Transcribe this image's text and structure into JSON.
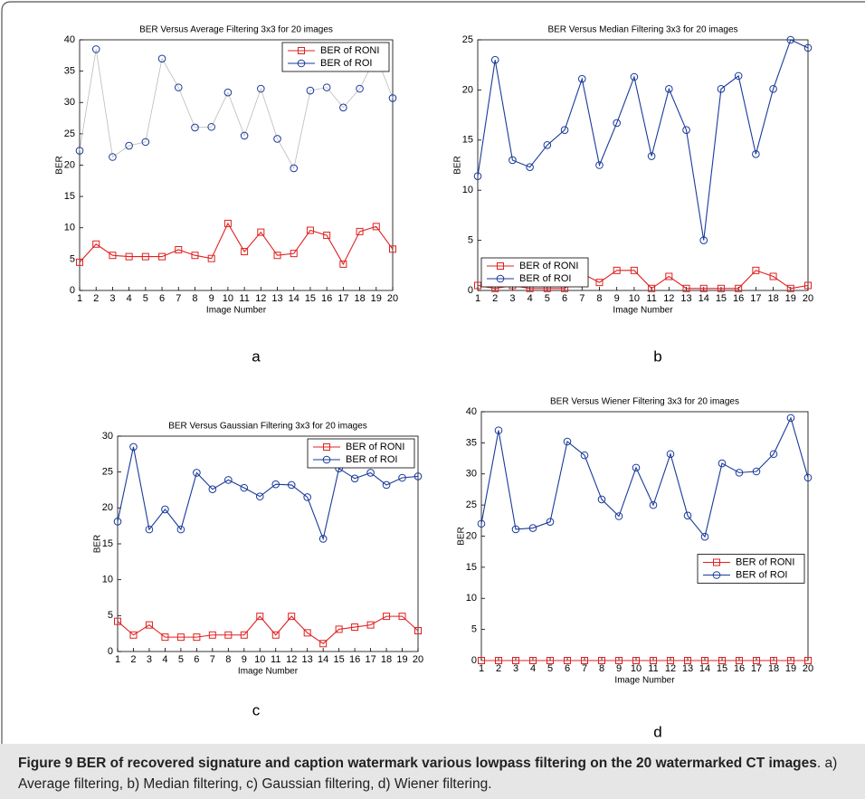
{
  "chart_data": [
    {
      "type": "line",
      "label": "a",
      "title": "BER Versus Average Filtering 3x3 for 20 images",
      "xlabel": "Image Number",
      "ylabel": "BER",
      "x": [
        1,
        2,
        3,
        4,
        5,
        6,
        7,
        8,
        9,
        10,
        11,
        12,
        13,
        14,
        15,
        16,
        17,
        18,
        19,
        20
      ],
      "xlim": [
        1,
        20
      ],
      "xticks": [
        1,
        2,
        3,
        4,
        5,
        6,
        7,
        8,
        9,
        10,
        11,
        12,
        13,
        14,
        15,
        16,
        17,
        18,
        19,
        20
      ],
      "ylim": [
        0,
        40
      ],
      "yticks": [
        0,
        5,
        10,
        15,
        20,
        25,
        30,
        35,
        40
      ],
      "legend": "upper right",
      "series": [
        {
          "name": "BER of RONI",
          "color": "#e02020",
          "marker": "square",
          "values": [
            4.5,
            7.4,
            5.6,
            5.4,
            5.4,
            5.4,
            6.5,
            5.6,
            5.1,
            10.7,
            6.2,
            9.3,
            5.6,
            5.9,
            9.6,
            8.8,
            4.2,
            9.4,
            10.2,
            6.6
          ]
        },
        {
          "name": "BER of ROI",
          "color": "#1a3a9a",
          "line_color": "#bbbbbb",
          "marker": "circle",
          "values": [
            22.3,
            38.5,
            21.3,
            23.1,
            23.7,
            37,
            32.4,
            26,
            26.1,
            31.6,
            24.7,
            32.2,
            24.2,
            19.5,
            31.9,
            32.4,
            29.2,
            32.2,
            37.4,
            30.7
          ]
        }
      ]
    },
    {
      "type": "line",
      "label": "b",
      "title": "BER Versus Median Filtering 3x3 for 20 images",
      "xlabel": "Image Number",
      "ylabel": "BER",
      "x": [
        1,
        2,
        3,
        4,
        5,
        6,
        7,
        8,
        9,
        10,
        11,
        12,
        13,
        14,
        15,
        16,
        17,
        18,
        19,
        20
      ],
      "xlim": [
        1,
        20
      ],
      "xticks": [
        1,
        2,
        3,
        4,
        5,
        6,
        7,
        8,
        9,
        10,
        11,
        12,
        13,
        14,
        15,
        16,
        17,
        18,
        19,
        20
      ],
      "ylim": [
        0,
        25
      ],
      "yticks": [
        0,
        5,
        10,
        15,
        20,
        25
      ],
      "legend": "lower left",
      "series": [
        {
          "name": "BER of RONI",
          "color": "#e02020",
          "marker": "square",
          "values": [
            0.5,
            0.2,
            0.5,
            0.2,
            0.2,
            0.2,
            1.7,
            0.8,
            2,
            2,
            0.2,
            1.4,
            0.2,
            0.2,
            0.2,
            0.2,
            2,
            1.4,
            0.2,
            0.5
          ]
        },
        {
          "name": "BER of ROI",
          "color": "#1a3a9a",
          "marker": "circle",
          "values": [
            11.4,
            23,
            13,
            12.3,
            14.5,
            16,
            21.1,
            12.5,
            16.7,
            21.3,
            13.4,
            20.1,
            16,
            5,
            20.1,
            21.4,
            13.6,
            20.1,
            25,
            24.2
          ]
        }
      ]
    },
    {
      "type": "line",
      "label": "c",
      "title": "BER Versus Gaussian Filtering 3x3 for 20 images",
      "xlabel": "Image Number",
      "ylabel": "BER",
      "x": [
        1,
        2,
        3,
        4,
        5,
        6,
        7,
        8,
        9,
        10,
        11,
        12,
        13,
        14,
        15,
        16,
        17,
        18,
        19,
        20
      ],
      "xlim": [
        1,
        20
      ],
      "xticks": [
        1,
        2,
        3,
        4,
        5,
        6,
        7,
        8,
        9,
        10,
        11,
        12,
        13,
        14,
        15,
        16,
        17,
        18,
        19,
        20
      ],
      "ylim": [
        0,
        30
      ],
      "yticks": [
        0,
        5,
        10,
        15,
        20,
        25,
        30
      ],
      "legend": "upper right",
      "series": [
        {
          "name": "BER of RONI",
          "color": "#e02020",
          "marker": "square",
          "values": [
            4.2,
            2.3,
            3.7,
            2,
            2,
            2,
            2.3,
            2.3,
            2.3,
            4.9,
            2.3,
            4.9,
            2.6,
            1.1,
            3.1,
            3.4,
            3.7,
            4.9,
            4.9,
            2.9
          ]
        },
        {
          "name": "BER of ROI",
          "color": "#1a3a9a",
          "marker": "circle",
          "values": [
            18.1,
            28.5,
            17,
            19.8,
            17,
            24.9,
            22.6,
            23.9,
            22.8,
            21.6,
            23.3,
            23.2,
            21.5,
            15.7,
            25.5,
            24.1,
            24.9,
            23.2,
            24.2,
            24.4
          ]
        }
      ]
    },
    {
      "type": "line",
      "label": "d",
      "title": "BER Versus Wiener Filtering 3x3 for 20 images",
      "xlabel": "Image Number",
      "ylabel": "BER",
      "x": [
        1,
        2,
        3,
        4,
        5,
        6,
        7,
        8,
        9,
        10,
        11,
        12,
        13,
        14,
        15,
        16,
        17,
        18,
        19,
        20
      ],
      "xlim": [
        1,
        20
      ],
      "xticks": [
        1,
        2,
        3,
        4,
        5,
        6,
        7,
        8,
        9,
        10,
        11,
        12,
        13,
        14,
        15,
        16,
        17,
        18,
        19,
        20
      ],
      "ylim": [
        0,
        40
      ],
      "yticks": [
        0,
        5,
        10,
        15,
        20,
        25,
        30,
        35,
        40
      ],
      "legend": "center right",
      "series": [
        {
          "name": "BER of RONI",
          "color": "#e02020",
          "marker": "square",
          "values": [
            0,
            0,
            0,
            0,
            0,
            0,
            0,
            0,
            0,
            0,
            0,
            0,
            0,
            0,
            0,
            0,
            0,
            0,
            0,
            0
          ]
        },
        {
          "name": "BER of ROI",
          "color": "#1a3a9a",
          "marker": "circle",
          "values": [
            22,
            37,
            21.1,
            21.3,
            22.3,
            35.2,
            33,
            25.9,
            23.2,
            31,
            25,
            33.2,
            23.3,
            19.9,
            31.7,
            30.2,
            30.4,
            33.2,
            39,
            29.4
          ]
        }
      ]
    }
  ],
  "caption": {
    "bold": "Figure 9 BER of recovered signature and caption watermark various lowpass filtering on the 20 watermarked CT images",
    "text": ". a) Average filtering, b) Median filtering, c) Gaussian filtering, d) Wiener filtering."
  }
}
